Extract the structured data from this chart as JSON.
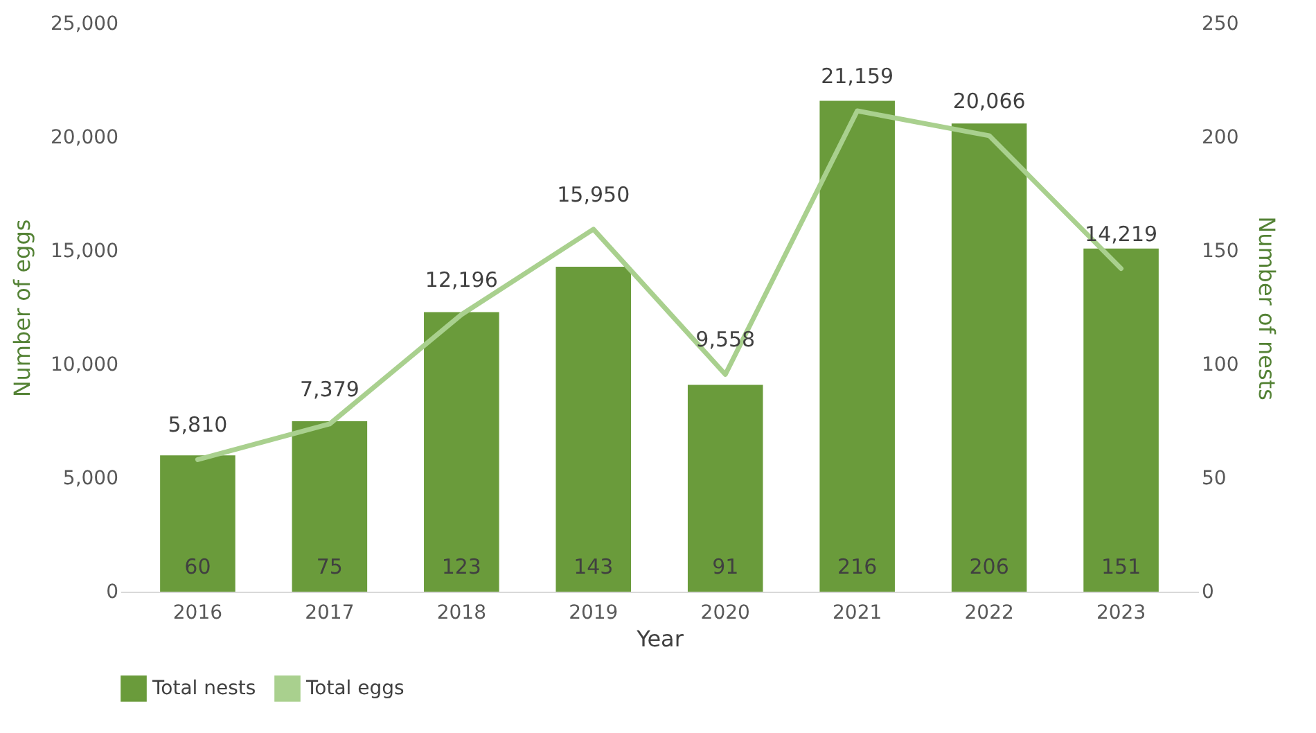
{
  "chart_data": {
    "type": "bar",
    "xlabel": "Year",
    "ylabel": "Number of eggs",
    "y2label": "Number of nests",
    "categories": [
      "2016",
      "2017",
      "2018",
      "2019",
      "2020",
      "2021",
      "2022",
      "2023"
    ],
    "series": [
      {
        "name": "Total nests",
        "axis": "y2",
        "color": "#6a9b3b",
        "values": [
          60,
          75,
          123,
          143,
          91,
          216,
          206,
          151
        ],
        "value_labels": [
          "60",
          "75",
          "123",
          "143",
          "91",
          "216",
          "206",
          "151"
        ]
      },
      {
        "name": "Total eggs",
        "type": "line",
        "color": "#a9d08e",
        "values": [
          5810,
          7379,
          12196,
          15950,
          9558,
          21159,
          20066,
          14219
        ],
        "value_labels": [
          "5,810",
          "7,379",
          "12,196",
          "15,950",
          "9,558",
          "21,159",
          "20,066",
          "14,219"
        ]
      }
    ],
    "ylim": [
      0,
      25000
    ],
    "yticks": [
      0,
      {
        "value": 5000,
        "label": "5,000"
      },
      {
        "value": 10000,
        "label": "10,000"
      },
      {
        "value": 15000,
        "label": "15,000"
      },
      {
        "value": 20000,
        "label": "20,000"
      },
      {
        "value": 25000,
        "label": "25,000"
      }
    ],
    "y2lim": [
      0,
      250
    ],
    "y2ticks": [
      0,
      50,
      100,
      150,
      200,
      250
    ],
    "legend": "bottom",
    "grid": false
  }
}
